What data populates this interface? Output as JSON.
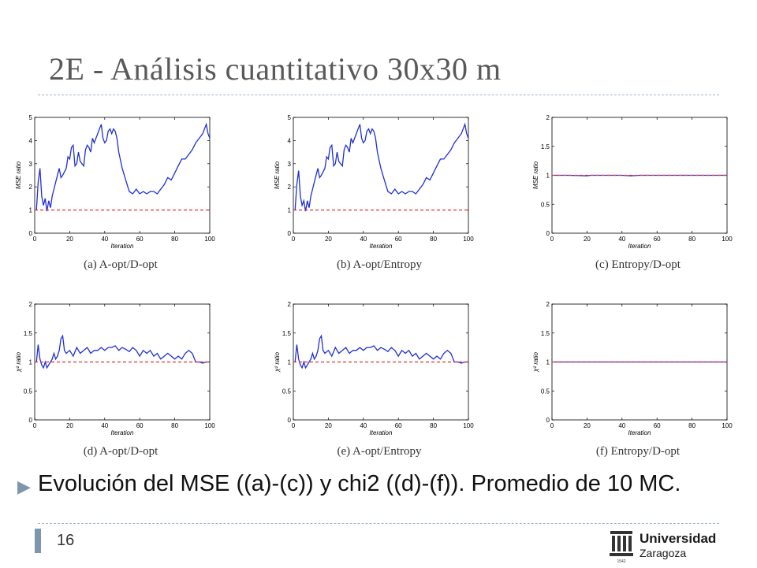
{
  "slide": {
    "title": "2E - Análisis cuantitativo 30x30 m",
    "bullet": "Evolución del MSE ((a)-(c)) y chi2 ((d)-(f)). Promedio de 10 MC.",
    "page_number": "16",
    "logo": {
      "line1": "Universidad",
      "line2": "Zaragoza",
      "year": "1542"
    },
    "bullet_marker": "▶"
  },
  "colors": {
    "series": "#1f2fd6",
    "reference": "#e03030",
    "title": "#595959",
    "rule": "#9fb6c9"
  },
  "chart_data": [
    {
      "type": "line",
      "caption": "(a) A-opt/D-opt",
      "xlabel": "Iteration",
      "ylabel": "MSE ratio",
      "xlim": [
        0,
        100
      ],
      "ylim": [
        0,
        5
      ],
      "xticks": [
        "0",
        "20",
        "40",
        "60",
        "80",
        "100"
      ],
      "yticks": [
        "0",
        "1",
        "2",
        "3",
        "4",
        "5"
      ],
      "series": [
        {
          "style": "solid",
          "x": [
            1,
            2,
            3,
            4,
            5,
            6,
            7,
            8,
            9,
            10,
            11,
            12,
            14,
            15,
            16,
            18,
            19,
            20,
            21,
            22,
            23,
            24,
            25,
            26,
            28,
            29,
            30,
            31,
            32,
            33,
            34,
            36,
            37,
            38,
            39,
            40,
            41,
            42,
            43,
            44,
            45,
            46,
            47,
            48,
            50,
            52,
            54,
            56,
            58,
            60,
            62,
            64,
            66,
            68,
            70,
            72,
            74,
            76,
            78,
            80,
            82,
            84,
            86,
            88,
            90,
            92,
            94,
            96,
            97,
            98,
            99,
            100
          ],
          "y": [
            1,
            2.2,
            2.8,
            1.6,
            1.2,
            1.5,
            0.95,
            1.4,
            1.1,
            1.6,
            1.9,
            2.2,
            2.8,
            2.4,
            2.5,
            2.8,
            3.3,
            3.2,
            3.7,
            3.8,
            2.9,
            3,
            3.5,
            3.1,
            2.9,
            3.6,
            3.8,
            3.7,
            3.5,
            4.1,
            3.9,
            4.3,
            4.5,
            4.7,
            4.1,
            3.9,
            4,
            4.4,
            4.5,
            4.3,
            4.5,
            4.4,
            4.1,
            3.5,
            2.8,
            2.3,
            1.8,
            1.7,
            1.9,
            1.7,
            1.8,
            1.7,
            1.8,
            1.8,
            1.7,
            1.9,
            2.1,
            2.4,
            2.3,
            2.6,
            2.9,
            3.2,
            3.2,
            3.4,
            3.6,
            3.9,
            4.1,
            4.3,
            4.5,
            4.7,
            4.3,
            4.1
          ]
        },
        {
          "style": "dashed",
          "x": [
            0,
            100
          ],
          "y": [
            1,
            1
          ]
        }
      ]
    },
    {
      "type": "line",
      "caption": "(b) A-opt/Entropy",
      "xlabel": "Iteration",
      "ylabel": "MSE ratio",
      "xlim": [
        0,
        100
      ],
      "ylim": [
        0,
        5
      ],
      "xticks": [
        "0",
        "20",
        "40",
        "60",
        "80",
        "100"
      ],
      "yticks": [
        "0",
        "1",
        "2",
        "3",
        "4",
        "5"
      ],
      "series": [
        {
          "style": "solid",
          "x": [
            1,
            2,
            3,
            4,
            5,
            6,
            7,
            8,
            9,
            10,
            11,
            12,
            14,
            15,
            16,
            18,
            19,
            20,
            21,
            22,
            23,
            24,
            25,
            26,
            28,
            29,
            30,
            31,
            32,
            33,
            34,
            36,
            37,
            38,
            39,
            40,
            41,
            42,
            43,
            44,
            45,
            46,
            47,
            48,
            50,
            52,
            54,
            56,
            58,
            60,
            62,
            64,
            66,
            68,
            70,
            72,
            74,
            76,
            78,
            80,
            82,
            84,
            86,
            88,
            90,
            92,
            94,
            96,
            97,
            98,
            99,
            100
          ],
          "y": [
            1,
            2.1,
            2.7,
            1.6,
            1.2,
            1.4,
            0.95,
            1.4,
            1.1,
            1.6,
            1.9,
            2.2,
            2.8,
            2.4,
            2.5,
            2.8,
            3.3,
            3.2,
            3.7,
            3.8,
            2.9,
            3,
            3.5,
            3.1,
            2.9,
            3.6,
            3.8,
            3.7,
            3.5,
            4.1,
            3.9,
            4.3,
            4.5,
            4.7,
            4.1,
            3.9,
            4,
            4.4,
            4.5,
            4.3,
            4.5,
            4.4,
            4.1,
            3.5,
            2.8,
            2.3,
            1.8,
            1.7,
            1.9,
            1.7,
            1.8,
            1.7,
            1.8,
            1.8,
            1.7,
            1.9,
            2.1,
            2.4,
            2.3,
            2.6,
            2.9,
            3.2,
            3.2,
            3.4,
            3.6,
            3.9,
            4.1,
            4.3,
            4.5,
            4.7,
            4.3,
            4.1
          ]
        },
        {
          "style": "dashed",
          "x": [
            0,
            100
          ],
          "y": [
            1,
            1
          ]
        }
      ]
    },
    {
      "type": "line",
      "caption": "(c) Entropy/D-opt",
      "xlabel": "Iteration",
      "ylabel": "MSE ratio",
      "xlim": [
        0,
        100
      ],
      "ylim": [
        0,
        2
      ],
      "xticks": [
        "0",
        "20",
        "40",
        "60",
        "80",
        "100"
      ],
      "yticks": [
        "0",
        "0.5",
        "1",
        "1.5",
        "2"
      ],
      "series": [
        {
          "style": "solid",
          "x": [
            1,
            10,
            20,
            22,
            30,
            40,
            45,
            50,
            60,
            70,
            80,
            90,
            100
          ],
          "y": [
            1,
            1,
            0.99,
            1,
            1,
            1,
            0.99,
            1,
            1,
            1,
            1,
            1,
            1
          ]
        },
        {
          "style": "dashed",
          "x": [
            0,
            100
          ],
          "y": [
            1,
            1
          ]
        }
      ]
    },
    {
      "type": "line",
      "caption": "(d) A-opt/D-opt",
      "xlabel": "Iteration",
      "ylabel": "χ² ratio",
      "xlim": [
        0,
        100
      ],
      "ylim": [
        0,
        2
      ],
      "xticks": [
        "0",
        "20",
        "40",
        "60",
        "80",
        "100"
      ],
      "yticks": [
        "0",
        "0.5",
        "1",
        "1.5",
        "2"
      ],
      "series": [
        {
          "style": "solid",
          "x": [
            1,
            2,
            3,
            4,
            5,
            6,
            7,
            8,
            9,
            10,
            11,
            12,
            13,
            14,
            15,
            16,
            17,
            18,
            20,
            22,
            24,
            26,
            28,
            30,
            32,
            34,
            36,
            38,
            40,
            42,
            44,
            46,
            48,
            50,
            52,
            54,
            56,
            58,
            60,
            62,
            64,
            66,
            68,
            70,
            72,
            74,
            76,
            78,
            80,
            82,
            84,
            86,
            88,
            90,
            92,
            94,
            96,
            98,
            100
          ],
          "y": [
            1,
            1.3,
            1.05,
            0.95,
            0.9,
            1,
            0.9,
            0.95,
            1,
            1.05,
            1.15,
            1.05,
            1.1,
            1.2,
            1.4,
            1.45,
            1.2,
            1.15,
            1.2,
            1.1,
            1.25,
            1.15,
            1.2,
            1.25,
            1.15,
            1.2,
            1.2,
            1.25,
            1.2,
            1.25,
            1.25,
            1.28,
            1.2,
            1.25,
            1.22,
            1.18,
            1.25,
            1.2,
            1.1,
            1.2,
            1.15,
            1.2,
            1.1,
            1.15,
            1.05,
            1.1,
            1.15,
            1.1,
            1.05,
            1.1,
            1.05,
            1.15,
            1.2,
            1.15,
            1.0,
            1.0,
            0.98,
            1.0,
            1.0
          ]
        },
        {
          "style": "dashed",
          "x": [
            0,
            100
          ],
          "y": [
            1,
            1
          ]
        }
      ]
    },
    {
      "type": "line",
      "caption": "(e) A-opt/Entropy",
      "xlabel": "Iteration",
      "ylabel": "χ² ratio",
      "xlim": [
        0,
        100
      ],
      "ylim": [
        0,
        2
      ],
      "xticks": [
        "0",
        "20",
        "40",
        "60",
        "80",
        "100"
      ],
      "yticks": [
        "0",
        "0.5",
        "1",
        "1.5",
        "2"
      ],
      "series": [
        {
          "style": "solid",
          "x": [
            1,
            2,
            3,
            4,
            5,
            6,
            7,
            8,
            9,
            10,
            11,
            12,
            13,
            14,
            15,
            16,
            17,
            18,
            20,
            22,
            24,
            26,
            28,
            30,
            32,
            34,
            36,
            38,
            40,
            42,
            44,
            46,
            48,
            50,
            52,
            54,
            56,
            58,
            60,
            62,
            64,
            66,
            68,
            70,
            72,
            74,
            76,
            78,
            80,
            82,
            84,
            86,
            88,
            90,
            92,
            94,
            96,
            98,
            100
          ],
          "y": [
            1,
            1.3,
            1.05,
            0.95,
            0.9,
            1,
            0.9,
            0.95,
            1,
            1.05,
            1.15,
            1.05,
            1.1,
            1.2,
            1.4,
            1.45,
            1.2,
            1.15,
            1.2,
            1.1,
            1.25,
            1.15,
            1.2,
            1.25,
            1.15,
            1.2,
            1.2,
            1.25,
            1.2,
            1.25,
            1.25,
            1.28,
            1.2,
            1.25,
            1.22,
            1.18,
            1.25,
            1.2,
            1.1,
            1.2,
            1.15,
            1.2,
            1.1,
            1.15,
            1.05,
            1.1,
            1.15,
            1.1,
            1.05,
            1.1,
            1.05,
            1.15,
            1.2,
            1.15,
            1.0,
            1.0,
            0.98,
            1.0,
            1.0
          ]
        },
        {
          "style": "dashed",
          "x": [
            0,
            100
          ],
          "y": [
            1,
            1
          ]
        }
      ]
    },
    {
      "type": "line",
      "caption": "(f) Entropy/D-opt",
      "xlabel": "Iteration",
      "ylabel": "χ² ratio",
      "xlim": [
        0,
        100
      ],
      "ylim": [
        0,
        2
      ],
      "xticks": [
        "0",
        "20",
        "40",
        "60",
        "80",
        "100"
      ],
      "yticks": [
        "0",
        "0.5",
        "1",
        "1.5",
        "2"
      ],
      "series": [
        {
          "style": "solid",
          "x": [
            1,
            20,
            40,
            60,
            80,
            100
          ],
          "y": [
            1,
            1,
            1,
            1,
            1,
            1
          ]
        },
        {
          "style": "dashed",
          "x": [
            0,
            100
          ],
          "y": [
            1,
            1
          ]
        }
      ]
    }
  ]
}
